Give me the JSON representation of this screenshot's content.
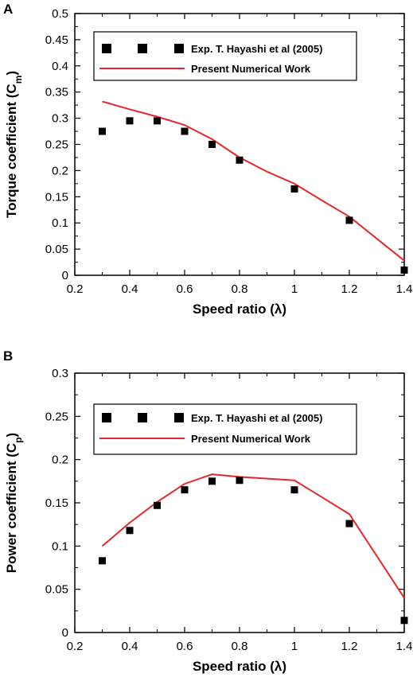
{
  "chart_data": [
    {
      "type": "scatter",
      "panel_label": "A",
      "xlabel": "Speed ratio (λ)",
      "ylabel_main": "Torque coefficient (C",
      "ylabel_sub": "m",
      "ylabel_close": ")",
      "xlim": [
        0.2,
        1.4
      ],
      "ylim": [
        0,
        0.5
      ],
      "xticks": [
        0.2,
        0.4,
        0.6,
        0.8,
        1,
        1.2,
        1.4
      ],
      "xtick_labels": [
        "0.2",
        "0.4",
        "0.6",
        "0.8",
        "1",
        "1.2",
        "1.4"
      ],
      "yticks": [
        0,
        0.05,
        0.1,
        0.15,
        0.2,
        0.25,
        0.3,
        0.35,
        0.4,
        0.45,
        0.5
      ],
      "ytick_labels": [
        "0",
        "0.05",
        "0.1",
        "0.15",
        "0.2",
        "0.25",
        "0.3",
        "0.35",
        "0.4",
        "0.45",
        "0.5"
      ],
      "grid": false,
      "legend_position": "top",
      "series": [
        {
          "name": "Exp. T. Hayashi et al (2005)",
          "kind": "markers",
          "color": "#000000",
          "x": [
            0.3,
            0.4,
            0.5,
            0.6,
            0.7,
            0.8,
            1.0,
            1.2,
            1.4
          ],
          "y": [
            0.275,
            0.295,
            0.295,
            0.275,
            0.25,
            0.22,
            0.165,
            0.105,
            0.01
          ]
        },
        {
          "name": "Present Numerical Work",
          "kind": "line",
          "color": "#e8262b",
          "x": [
            0.3,
            0.4,
            0.5,
            0.6,
            0.7,
            0.8,
            0.9,
            1.0,
            1.1,
            1.2,
            1.3,
            1.4
          ],
          "y": [
            0.332,
            0.317,
            0.303,
            0.287,
            0.26,
            0.225,
            0.198,
            0.175,
            0.143,
            0.112,
            0.07,
            0.028
          ]
        }
      ]
    },
    {
      "type": "scatter",
      "panel_label": "B",
      "xlabel": "Speed ratio (λ)",
      "ylabel_main": "Power coefficient (C",
      "ylabel_sub": "p",
      "ylabel_close": ")",
      "xlim": [
        0.2,
        1.4
      ],
      "ylim": [
        0,
        0.3
      ],
      "xticks": [
        0.2,
        0.4,
        0.6,
        0.8,
        1,
        1.2,
        1.4
      ],
      "xtick_labels": [
        "0.2",
        "0.4",
        "0.6",
        "0.8",
        "1",
        "1.2",
        "1.4"
      ],
      "yticks": [
        0,
        0.05,
        0.1,
        0.15,
        0.2,
        0.25,
        0.3
      ],
      "ytick_labels": [
        "0",
        "0.05",
        "0.1",
        "0.15",
        "0.2",
        "0.25",
        "0.3"
      ],
      "grid": false,
      "legend_position": "top",
      "series": [
        {
          "name": "Exp. T. Hayashi et al (2005)",
          "kind": "markers",
          "color": "#000000",
          "x": [
            0.3,
            0.4,
            0.5,
            0.6,
            0.7,
            0.8,
            1.0,
            1.2,
            1.4
          ],
          "y": [
            0.083,
            0.118,
            0.147,
            0.165,
            0.175,
            0.176,
            0.165,
            0.126,
            0.014
          ]
        },
        {
          "name": "Present Numerical Work",
          "kind": "line",
          "color": "#e8262b",
          "x": [
            0.3,
            0.4,
            0.5,
            0.6,
            0.7,
            0.8,
            1.0,
            1.2,
            1.4
          ],
          "y": [
            0.1,
            0.127,
            0.151,
            0.172,
            0.183,
            0.18,
            0.176,
            0.137,
            0.04
          ]
        }
      ]
    }
  ]
}
